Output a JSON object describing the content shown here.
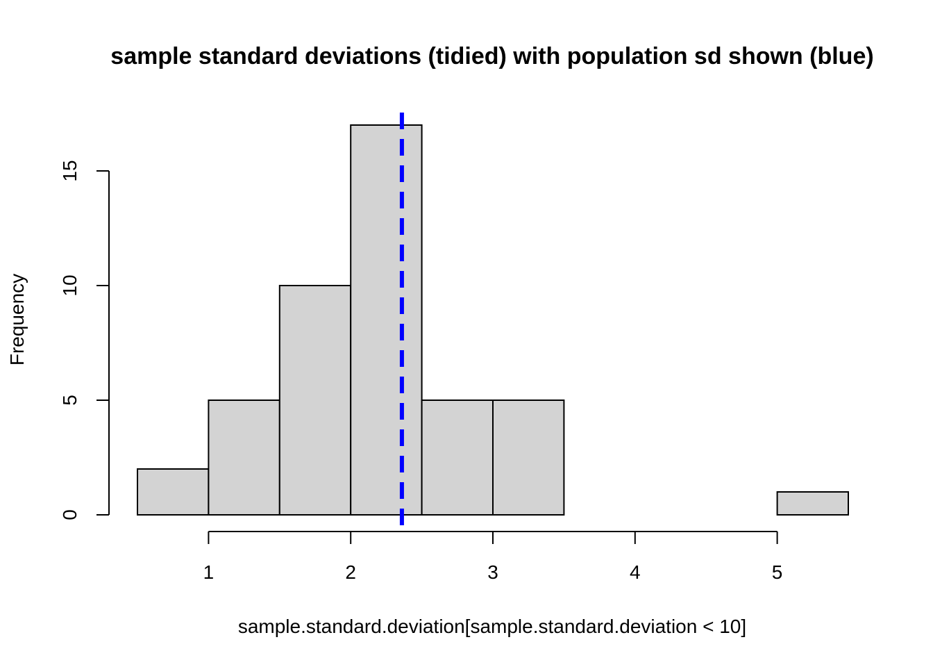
{
  "chart_data": {
    "type": "bar",
    "title": "sample standard deviations (tidied) with population sd shown (blue)",
    "xlabel": "sample.standard.deviation[sample.standard.deviation < 10]",
    "ylabel": "Frequency",
    "bins": [
      {
        "from": 0.5,
        "to": 1.0,
        "count": 2
      },
      {
        "from": 1.0,
        "to": 1.5,
        "count": 5
      },
      {
        "from": 1.5,
        "to": 2.0,
        "count": 10
      },
      {
        "from": 2.0,
        "to": 2.5,
        "count": 17
      },
      {
        "from": 2.5,
        "to": 3.0,
        "count": 5
      },
      {
        "from": 3.0,
        "to": 3.5,
        "count": 5
      },
      {
        "from": 3.5,
        "to": 4.0,
        "count": 0
      },
      {
        "from": 4.0,
        "to": 4.5,
        "count": 0
      },
      {
        "from": 4.5,
        "to": 5.0,
        "count": 0
      },
      {
        "from": 5.0,
        "to": 5.5,
        "count": 1
      }
    ],
    "x_ticks": [
      "1",
      "2",
      "3",
      "4",
      "5"
    ],
    "y_ticks": [
      "0",
      "5",
      "10",
      "15"
    ],
    "xlim": [
      0.5,
      5.5
    ],
    "ylim": [
      0,
      17.5
    ],
    "bar_color": "#d3d3d3",
    "reference_line": {
      "x": 2.36,
      "color": "#0000ff",
      "style": "dashed"
    },
    "grid": false
  }
}
